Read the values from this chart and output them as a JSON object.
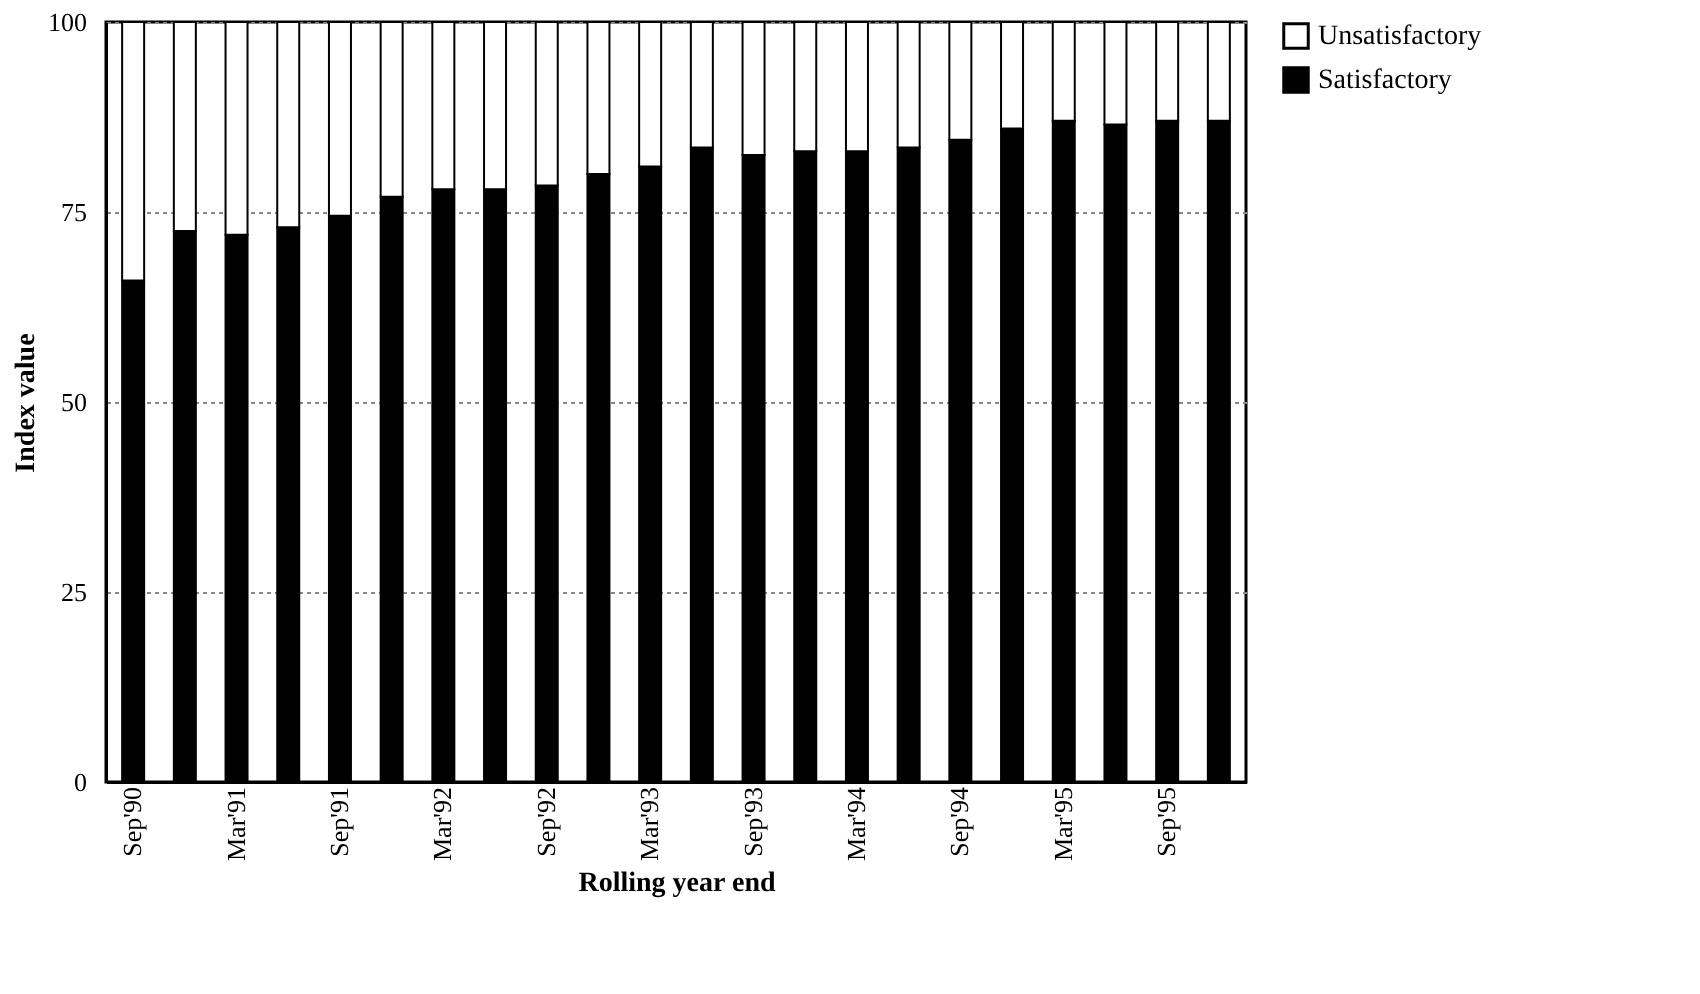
{
  "chart_data": {
    "type": "bar",
    "stacked": true,
    "xlabel": "Rolling year end",
    "ylabel": "Index value",
    "categories": [
      "Sep'90",
      null,
      "Mar'91",
      null,
      "Sep'91",
      null,
      "Mar'92",
      null,
      "Sep'92",
      null,
      "Mar'93",
      null,
      "Sep'93",
      null,
      "Mar'94",
      null,
      "Sep'94",
      null,
      "Mar'95",
      null,
      "Sep'95",
      null
    ],
    "series": [
      {
        "name": "Satisfactory",
        "color": "#000000",
        "values": [
          66,
          72.5,
          72,
          73,
          74.5,
          77,
          78,
          78,
          78.5,
          80,
          81,
          83.5,
          82.5,
          83,
          83,
          83.5,
          84.5,
          86,
          87,
          86.5,
          87,
          87
        ]
      },
      {
        "name": "Unsatisfactory",
        "color": "#ffffff",
        "values": [
          34,
          27.5,
          28,
          27,
          25.5,
          23,
          22,
          22,
          21.5,
          20,
          19,
          16.5,
          17.5,
          17,
          17,
          16.5,
          15.5,
          14,
          13,
          13.5,
          13,
          13
        ]
      }
    ],
    "ylim": [
      0,
      100
    ],
    "yticks": [
      0,
      25,
      50,
      75,
      100
    ],
    "grid": "y",
    "legend": "right"
  }
}
